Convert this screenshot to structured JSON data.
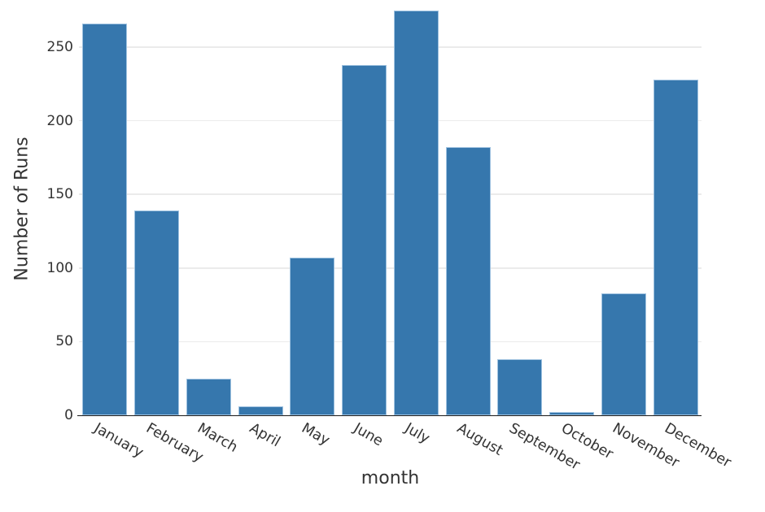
{
  "chart_data": {
    "type": "bar",
    "title": "",
    "xlabel": "month",
    "ylabel": "Number of Runs",
    "categories": [
      "January",
      "February",
      "March",
      "April",
      "May",
      "June",
      "July",
      "August",
      "September",
      "October",
      "November",
      "December"
    ],
    "values": [
      266,
      139,
      25,
      6,
      107,
      238,
      275,
      182,
      38,
      2,
      83,
      228
    ],
    "yticks": [
      0,
      50,
      100,
      150,
      200,
      250
    ],
    "ylim": [
      0,
      282
    ],
    "grid": "horizontal-only",
    "legend": "none",
    "x_tick_rotation_deg": 30,
    "colors": {
      "bar_fill": "#3677ad",
      "bar_edge": "#9fc2e0",
      "gridline": "#ebebeb",
      "axis_line": "#1a1a1a",
      "text": "#333333"
    }
  }
}
